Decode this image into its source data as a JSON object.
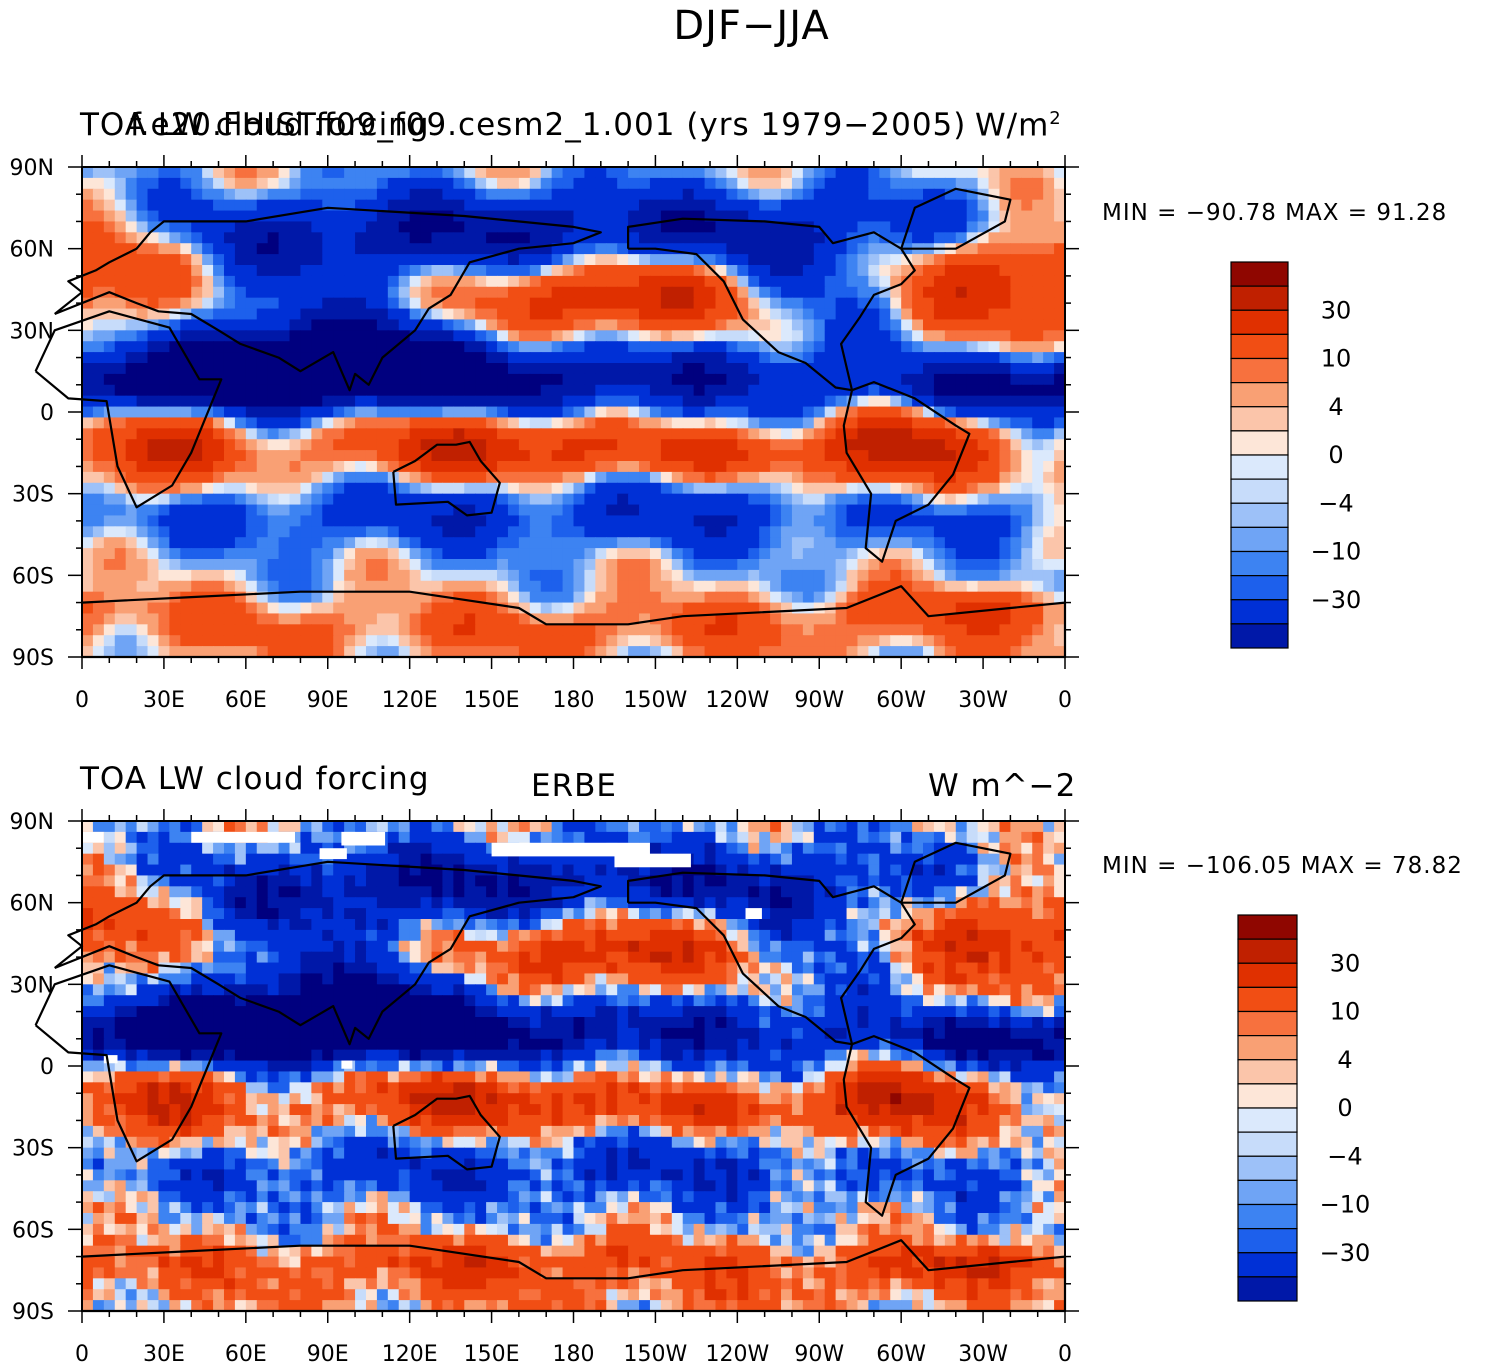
{
  "title": "DJF−JJA",
  "colors": [
    "#00007f",
    "#0018a8",
    "#0030d6",
    "#1d60ec",
    "#3d83f2",
    "#6fa4f5",
    "#9dc1f8",
    "#c7dcfa",
    "#dbe9fc",
    "#fde6d8",
    "#fbc5aa",
    "#f9a074",
    "#f7713e",
    "#f14e14",
    "#e03000",
    "#c02000",
    "#8f0600"
  ],
  "chart_data": [
    {
      "type": "heatmap",
      "title_left": "TOA LW cloud forcing",
      "title_overlay": "f.e20.FHIST.f09_f09.cesm2_1.001 (yrs 1979−2005)",
      "title_right": "W/m",
      "title_right_sup": "2",
      "title_center": "",
      "stats": {
        "min": -90.78,
        "max": 91.28
      },
      "stats_text": "MIN = −90.78  MAX =   91.28",
      "ylabels": [
        "90N",
        "60N",
        "30N",
        "0",
        "30S",
        "60S",
        "90S"
      ],
      "xlabels": [
        "0",
        "30E",
        "60E",
        "90E",
        "120E",
        "150E",
        "180",
        "150W",
        "120W",
        "90W",
        "60W",
        "30W",
        "0"
      ],
      "colorbar_levels": [
        "30",
        "10",
        "4",
        "0",
        "−4",
        "−10",
        "−30"
      ],
      "missing_regions": false
    },
    {
      "type": "heatmap",
      "title_left": "TOA LW cloud forcing",
      "title_overlay": "",
      "title_right": "W m^−2",
      "title_right_sup": "",
      "title_center": "ERBE",
      "stats": {
        "min": -106.05,
        "max": 78.82
      },
      "stats_text": "MIN = −106.05  MAX =   78.82",
      "ylabels": [
        "90N",
        "60N",
        "30N",
        "0",
        "30S",
        "60S",
        "90S"
      ],
      "xlabels": [
        "0",
        "30E",
        "60E",
        "90E",
        "120E",
        "150E",
        "180",
        "150W",
        "120W",
        "90W",
        "60W",
        "30W",
        "0"
      ],
      "colorbar_levels": [
        "30",
        "10",
        "4",
        "0",
        "−4",
        "−10",
        "−30"
      ],
      "missing_regions": true
    }
  ]
}
